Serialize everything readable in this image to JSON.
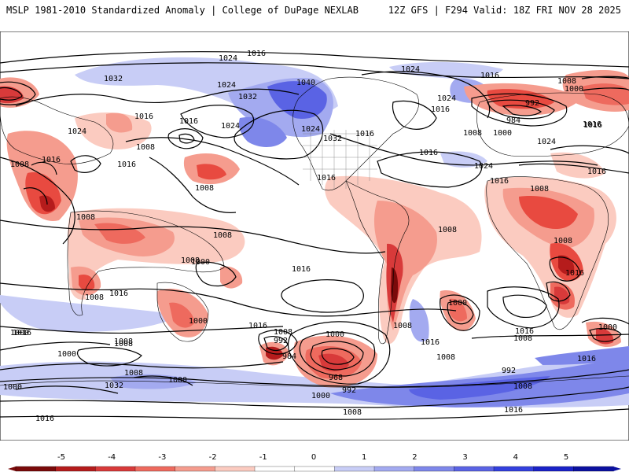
{
  "header": {
    "title_left": "MSLP 1981-2010 Standardized Anomaly | College of DuPage NEXLAB",
    "title_right": "12Z GFS | F294 Valid: 18Z FRI NOV 28 2025"
  },
  "contour_labels": [
    {
      "id": "l1",
      "text": "1016"
    },
    {
      "id": "l2",
      "text": "1024"
    },
    {
      "id": "l3",
      "text": "1032"
    },
    {
      "id": "l4",
      "text": "1024"
    },
    {
      "id": "l5",
      "text": "1032"
    },
    {
      "id": "l6",
      "text": "1040"
    },
    {
      "id": "l7",
      "text": "1024"
    },
    {
      "id": "l8",
      "text": "1016"
    },
    {
      "id": "l9",
      "text": "1008"
    },
    {
      "id": "l10",
      "text": "1024"
    },
    {
      "id": "l11",
      "text": "1016"
    },
    {
      "id": "l12",
      "text": "1000"
    },
    {
      "id": "l13",
      "text": "992"
    },
    {
      "id": "l14",
      "text": "984"
    },
    {
      "id": "l15",
      "text": "1016"
    },
    {
      "id": "l16",
      "text": "1016"
    },
    {
      "id": "l17",
      "text": "1024"
    },
    {
      "id": "l18",
      "text": "1008"
    },
    {
      "id": "l19",
      "text": "1016"
    },
    {
      "id": "l20",
      "text": "1024"
    },
    {
      "id": "l21",
      "text": "1016"
    },
    {
      "id": "l22",
      "text": "1024"
    },
    {
      "id": "l23",
      "text": "1032"
    },
    {
      "id": "l24",
      "text": "1016"
    },
    {
      "id": "l25",
      "text": "1008"
    },
    {
      "id": "l26",
      "text": "1000"
    },
    {
      "id": "l27",
      "text": "1024"
    },
    {
      "id": "l28",
      "text": "1016"
    },
    {
      "id": "l29",
      "text": "1016"
    },
    {
      "id": "l30",
      "text": "1008"
    },
    {
      "id": "l31",
      "text": "1016"
    },
    {
      "id": "l32",
      "text": "1008"
    },
    {
      "id": "l33",
      "text": "1024"
    },
    {
      "id": "l34",
      "text": "1016"
    },
    {
      "id": "l35",
      "text": "1008"
    },
    {
      "id": "l36",
      "text": "1008"
    },
    {
      "id": "l37",
      "text": "1016"
    },
    {
      "id": "l38",
      "text": "1016"
    },
    {
      "id": "l39",
      "text": "1008"
    },
    {
      "id": "l40",
      "text": "1008"
    },
    {
      "id": "l41",
      "text": "1000"
    },
    {
      "id": "l42",
      "text": "1008"
    },
    {
      "id": "l43",
      "text": "1016"
    },
    {
      "id": "l44",
      "text": "1008"
    },
    {
      "id": "l45",
      "text": "1016"
    },
    {
      "id": "l46",
      "text": "1016"
    },
    {
      "id": "l47",
      "text": "1008"
    },
    {
      "id": "l48",
      "text": "1000"
    },
    {
      "id": "l49",
      "text": "992"
    },
    {
      "id": "l50",
      "text": "984"
    },
    {
      "id": "l51",
      "text": "968"
    },
    {
      "id": "l52",
      "text": "1000"
    },
    {
      "id": "l53",
      "text": "1008"
    },
    {
      "id": "l54",
      "text": "1016"
    },
    {
      "id": "l55",
      "text": "1008"
    },
    {
      "id": "l56",
      "text": "1000"
    },
    {
      "id": "l57",
      "text": "1016"
    },
    {
      "id": "l58",
      "text": "1008"
    },
    {
      "id": "l59",
      "text": "1000"
    },
    {
      "id": "l60",
      "text": "1016"
    },
    {
      "id": "l61",
      "text": "1008"
    },
    {
      "id": "l62",
      "text": "1008"
    },
    {
      "id": "l63",
      "text": "1000"
    },
    {
      "id": "l64",
      "text": "1032"
    },
    {
      "id": "l65",
      "text": "1000"
    },
    {
      "id": "l66",
      "text": "1008"
    },
    {
      "id": "l67",
      "text": "992"
    },
    {
      "id": "l68",
      "text": "1000"
    },
    {
      "id": "l69",
      "text": "1008"
    },
    {
      "id": "l70",
      "text": "1008"
    },
    {
      "id": "l71",
      "text": "992"
    },
    {
      "id": "l72",
      "text": "1016"
    },
    {
      "id": "l73",
      "text": "1016"
    },
    {
      "id": "l74",
      "text": "1000"
    },
    {
      "id": "l75",
      "text": "1008"
    },
    {
      "id": "l76",
      "text": "1016"
    },
    {
      "id": "l77",
      "text": "1016"
    },
    {
      "id": "l78",
      "text": "1000"
    }
  ],
  "legend": {
    "ticks": [
      "-5",
      "-4",
      "-3",
      "-2",
      "-1",
      "0",
      "1",
      "2",
      "3",
      "4",
      "5"
    ],
    "colors": [
      "#7a0a0a",
      "#b51c1c",
      "#d83a3a",
      "#ee6a5e",
      "#f59c8e",
      "#fbcbc0",
      "#ffffff",
      "#ffffff",
      "#c8cdf6",
      "#a3aaf0",
      "#7e87ea",
      "#5a63e4",
      "#3340de",
      "#1a22c8",
      "#0b10a0"
    ]
  },
  "colors": {
    "low_anomaly": "#e84a40",
    "high_anomaly": "#5a6ae8",
    "land": "#ffffff",
    "ocean": "#ffffff"
  }
}
